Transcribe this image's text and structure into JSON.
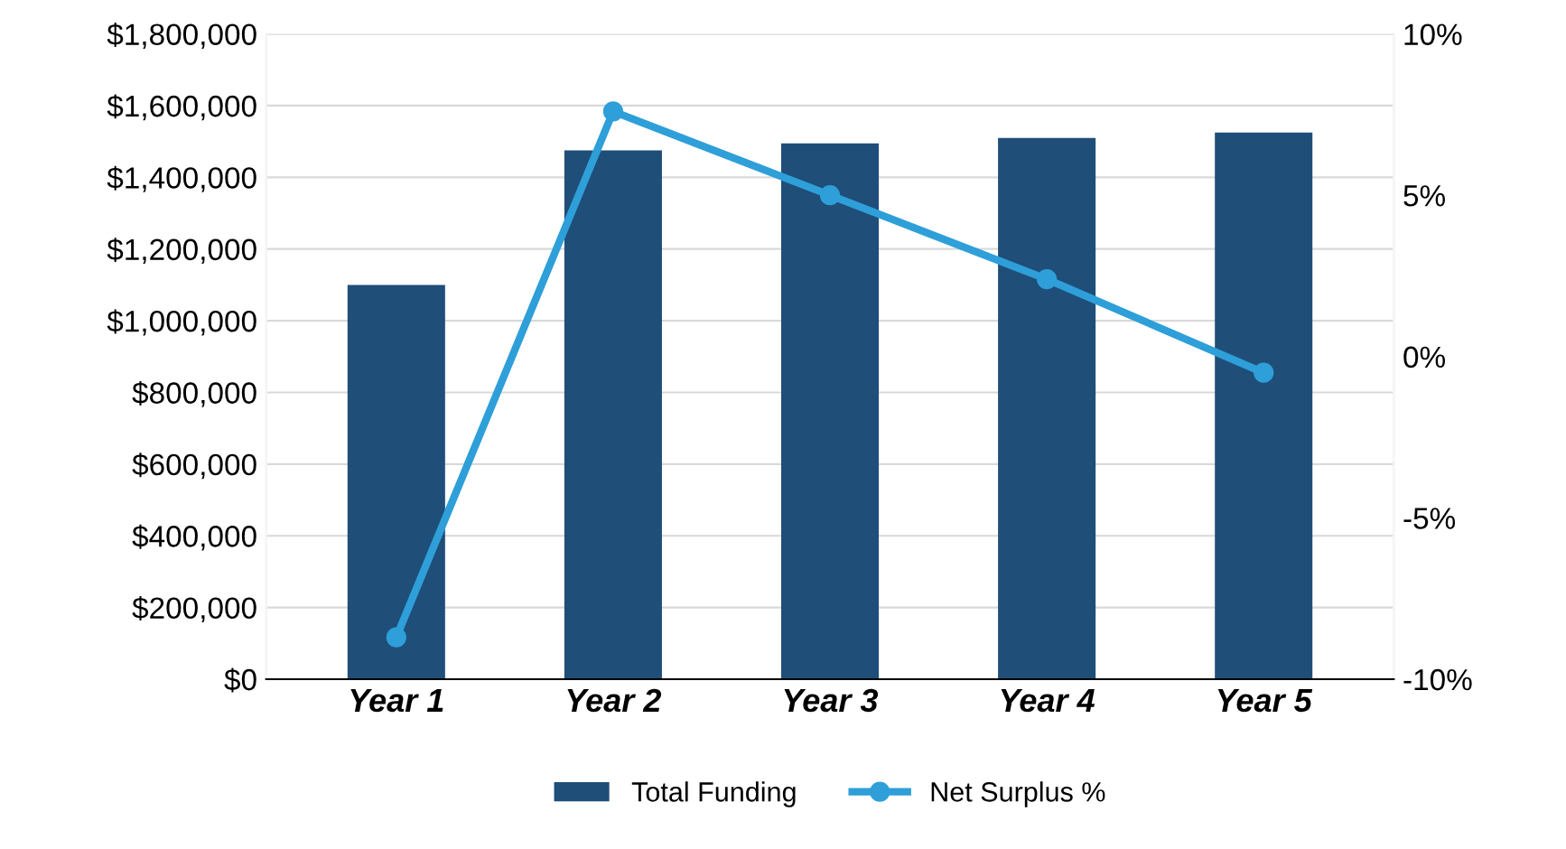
{
  "chart_data": {
    "type": "bar",
    "categories": [
      "Year 1",
      "Year 2",
      "Year 3",
      "Year 4",
      "Year 5"
    ],
    "series": [
      {
        "name": "Total Funding",
        "color": "#1f4e79",
        "values": [
          1100000,
          1475000,
          1495000,
          1510000,
          1525000
        ]
      },
      {
        "name": "Net Surplus %",
        "type": "line",
        "axis": "y2",
        "color": "#2e9fd8",
        "marker": "circle",
        "values": [
          -8.7,
          7.6,
          5.0,
          2.4,
          -0.5
        ]
      }
    ],
    "ylim": [
      0,
      1800000
    ],
    "yticks": [
      {
        "value": 0,
        "label": "$0"
      },
      {
        "value": 200000,
        "label": "$200,000"
      },
      {
        "value": 400000,
        "label": "$400,000"
      },
      {
        "value": 600000,
        "label": "$600,000"
      },
      {
        "value": 800000,
        "label": "$800,000"
      },
      {
        "value": 1000000,
        "label": "$1,000,000"
      },
      {
        "value": 1200000,
        "label": "$1,200,000"
      },
      {
        "value": 1400000,
        "label": "$1,400,000"
      },
      {
        "value": 1600000,
        "label": "$1,600,000"
      },
      {
        "value": 1800000,
        "label": "$1,800,000"
      }
    ],
    "y2lim": [
      -10,
      10
    ],
    "y2ticks": [
      {
        "value": -10,
        "label": "-10%"
      },
      {
        "value": -5,
        "label": "-5%"
      },
      {
        "value": 0,
        "label": "0%"
      },
      {
        "value": 5,
        "label": "5%"
      },
      {
        "value": 10,
        "label": "10%"
      }
    ],
    "grid": "y",
    "legend": "bottom"
  }
}
